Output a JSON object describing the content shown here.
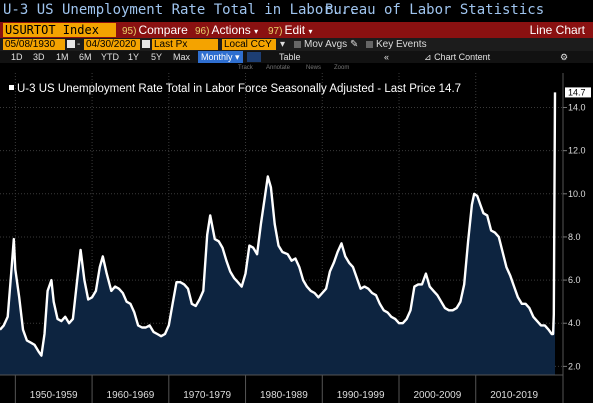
{
  "window": {
    "title": "U-3 US Unemployment Rate Total in Labor...",
    "source": "Bureau of Labor Statistics"
  },
  "command_bar": {
    "ticker": "USURTOT Index",
    "compare": {
      "num": "95)",
      "label": "Compare"
    },
    "actions": {
      "num": "96)",
      "label": "Actions"
    },
    "edit": {
      "num": "97)",
      "label": "Edit"
    },
    "view_label": "Line Chart"
  },
  "params": {
    "start_date": "05/08/1930",
    "end_date": "04/30/2020",
    "price_field": "Last Px",
    "currency": "Local CCY",
    "mov_avgs": "Mov Avgs",
    "key_events": "Key Events"
  },
  "range_bar": {
    "ranges": [
      "1D",
      "3D",
      "1M",
      "6M",
      "YTD",
      "1Y",
      "5Y",
      "Max"
    ],
    "periodicity": "Monthly",
    "table": "Table",
    "chart_content": "Chart Content"
  },
  "sub_toolbar": [
    "Track",
    "Annotate",
    "News",
    "Zoom"
  ],
  "colors": {
    "accent_orange": "#f4a300",
    "command_red": "#8a1111",
    "series_line": "#ffffff",
    "series_fill": "#0d2440"
  },
  "chart_data": {
    "type": "area",
    "legend": "U-3 US Unemployment Rate Total in Labor Force Seasonally Adjusted - Last Price 14.7",
    "last_value": 14.7,
    "last_value_label": "14.7",
    "x_range": [
      1948,
      2020.33
    ],
    "ylim": [
      1.6,
      15.6
    ],
    "y_ticks": [
      2,
      4,
      6,
      8,
      10,
      12,
      14
    ],
    "y_tick_labels": [
      "2.0",
      "4.0",
      "6.0",
      "8.0",
      "10.0",
      "12.0",
      "14.0"
    ],
    "x_groups": [
      {
        "label": "1950-1959",
        "start": 1950,
        "end": 1960
      },
      {
        "label": "1960-1969",
        "start": 1960,
        "end": 1970
      },
      {
        "label": "1970-1979",
        "start": 1970,
        "end": 1980
      },
      {
        "label": "1980-1989",
        "start": 1980,
        "end": 1990
      },
      {
        "label": "1990-1999",
        "start": 1990,
        "end": 2000
      },
      {
        "label": "2000-2009",
        "start": 2000,
        "end": 2010
      },
      {
        "label": "2010-2019",
        "start": 2010,
        "end": 2020
      }
    ],
    "grid": true,
    "series": [
      {
        "values": [
          [
            1948.0,
            3.7
          ],
          [
            1948.5,
            3.9
          ],
          [
            1949.0,
            4.3
          ],
          [
            1949.5,
            6.5
          ],
          [
            1949.8,
            7.9
          ],
          [
            1950.0,
            6.5
          ],
          [
            1950.5,
            5.2
          ],
          [
            1951.0,
            3.7
          ],
          [
            1951.5,
            3.2
          ],
          [
            1952.0,
            3.1
          ],
          [
            1952.5,
            3.0
          ],
          [
            1953.0,
            2.7
          ],
          [
            1953.4,
            2.5
          ],
          [
            1953.8,
            3.5
          ],
          [
            1954.2,
            5.5
          ],
          [
            1954.7,
            6.0
          ],
          [
            1955.0,
            5.0
          ],
          [
            1955.5,
            4.2
          ],
          [
            1956.0,
            4.1
          ],
          [
            1956.5,
            4.3
          ],
          [
            1957.0,
            4.0
          ],
          [
            1957.5,
            4.2
          ],
          [
            1958.0,
            5.8
          ],
          [
            1958.5,
            7.4
          ],
          [
            1959.0,
            6.0
          ],
          [
            1959.5,
            5.1
          ],
          [
            1960.0,
            5.2
          ],
          [
            1960.5,
            5.5
          ],
          [
            1961.0,
            6.6
          ],
          [
            1961.4,
            7.1
          ],
          [
            1961.9,
            6.3
          ],
          [
            1962.5,
            5.5
          ],
          [
            1963.0,
            5.7
          ],
          [
            1963.5,
            5.6
          ],
          [
            1964.0,
            5.4
          ],
          [
            1964.5,
            5.0
          ],
          [
            1965.0,
            4.9
          ],
          [
            1965.5,
            4.5
          ],
          [
            1966.0,
            3.9
          ],
          [
            1966.5,
            3.8
          ],
          [
            1967.0,
            3.8
          ],
          [
            1967.5,
            3.9
          ],
          [
            1968.0,
            3.6
          ],
          [
            1968.5,
            3.5
          ],
          [
            1969.0,
            3.4
          ],
          [
            1969.5,
            3.5
          ],
          [
            1970.0,
            3.9
          ],
          [
            1970.5,
            4.9
          ],
          [
            1971.0,
            5.9
          ],
          [
            1971.5,
            5.9
          ],
          [
            1972.0,
            5.8
          ],
          [
            1972.5,
            5.6
          ],
          [
            1973.0,
            4.9
          ],
          [
            1973.5,
            4.8
          ],
          [
            1974.0,
            5.1
          ],
          [
            1974.5,
            5.5
          ],
          [
            1975.0,
            8.1
          ],
          [
            1975.4,
            9.0
          ],
          [
            1976.0,
            7.9
          ],
          [
            1976.5,
            7.8
          ],
          [
            1977.0,
            7.5
          ],
          [
            1977.5,
            6.9
          ],
          [
            1978.0,
            6.4
          ],
          [
            1978.5,
            6.1
          ],
          [
            1979.0,
            5.9
          ],
          [
            1979.5,
            5.7
          ],
          [
            1980.0,
            6.3
          ],
          [
            1980.5,
            7.6
          ],
          [
            1981.0,
            7.5
          ],
          [
            1981.5,
            7.2
          ],
          [
            1982.0,
            8.6
          ],
          [
            1982.5,
            9.8
          ],
          [
            1982.9,
            10.8
          ],
          [
            1983.3,
            10.3
          ],
          [
            1983.8,
            8.6
          ],
          [
            1984.3,
            7.6
          ],
          [
            1984.8,
            7.3
          ],
          [
            1985.5,
            7.2
          ],
          [
            1986.0,
            6.9
          ],
          [
            1986.5,
            7.0
          ],
          [
            1987.0,
            6.6
          ],
          [
            1987.5,
            6.0
          ],
          [
            1988.0,
            5.7
          ],
          [
            1988.5,
            5.5
          ],
          [
            1989.0,
            5.4
          ],
          [
            1989.5,
            5.2
          ],
          [
            1990.0,
            5.4
          ],
          [
            1990.5,
            5.6
          ],
          [
            1991.0,
            6.4
          ],
          [
            1991.5,
            6.8
          ],
          [
            1992.0,
            7.3
          ],
          [
            1992.5,
            7.7
          ],
          [
            1993.0,
            7.1
          ],
          [
            1993.5,
            6.8
          ],
          [
            1994.0,
            6.6
          ],
          [
            1994.5,
            6.1
          ],
          [
            1995.0,
            5.6
          ],
          [
            1995.5,
            5.7
          ],
          [
            1996.0,
            5.6
          ],
          [
            1996.5,
            5.4
          ],
          [
            1997.0,
            5.3
          ],
          [
            1997.5,
            4.9
          ],
          [
            1998.0,
            4.6
          ],
          [
            1998.5,
            4.5
          ],
          [
            1999.0,
            4.3
          ],
          [
            1999.5,
            4.2
          ],
          [
            2000.0,
            4.0
          ],
          [
            2000.5,
            4.0
          ],
          [
            2001.0,
            4.2
          ],
          [
            2001.5,
            4.6
          ],
          [
            2002.0,
            5.7
          ],
          [
            2002.5,
            5.8
          ],
          [
            2003.0,
            5.8
          ],
          [
            2003.5,
            6.3
          ],
          [
            2004.0,
            5.7
          ],
          [
            2004.5,
            5.5
          ],
          [
            2005.0,
            5.3
          ],
          [
            2005.5,
            5.0
          ],
          [
            2006.0,
            4.7
          ],
          [
            2006.5,
            4.6
          ],
          [
            2007.0,
            4.6
          ],
          [
            2007.5,
            4.7
          ],
          [
            2008.0,
            5.0
          ],
          [
            2008.5,
            5.8
          ],
          [
            2009.0,
            7.8
          ],
          [
            2009.5,
            9.5
          ],
          [
            2009.8,
            10.0
          ],
          [
            2010.2,
            9.9
          ],
          [
            2010.6,
            9.5
          ],
          [
            2011.0,
            9.1
          ],
          [
            2011.5,
            9.0
          ],
          [
            2012.0,
            8.3
          ],
          [
            2012.5,
            8.2
          ],
          [
            2013.0,
            8.0
          ],
          [
            2013.5,
            7.3
          ],
          [
            2014.0,
            6.6
          ],
          [
            2014.5,
            6.2
          ],
          [
            2015.0,
            5.7
          ],
          [
            2015.5,
            5.2
          ],
          [
            2016.0,
            4.9
          ],
          [
            2016.5,
            4.9
          ],
          [
            2017.0,
            4.7
          ],
          [
            2017.5,
            4.3
          ],
          [
            2018.0,
            4.1
          ],
          [
            2018.5,
            3.9
          ],
          [
            2019.0,
            3.9
          ],
          [
            2019.5,
            3.7
          ],
          [
            2019.9,
            3.5
          ],
          [
            2020.08,
            3.5
          ],
          [
            2020.17,
            4.4
          ],
          [
            2020.33,
            14.7
          ]
        ]
      }
    ]
  }
}
